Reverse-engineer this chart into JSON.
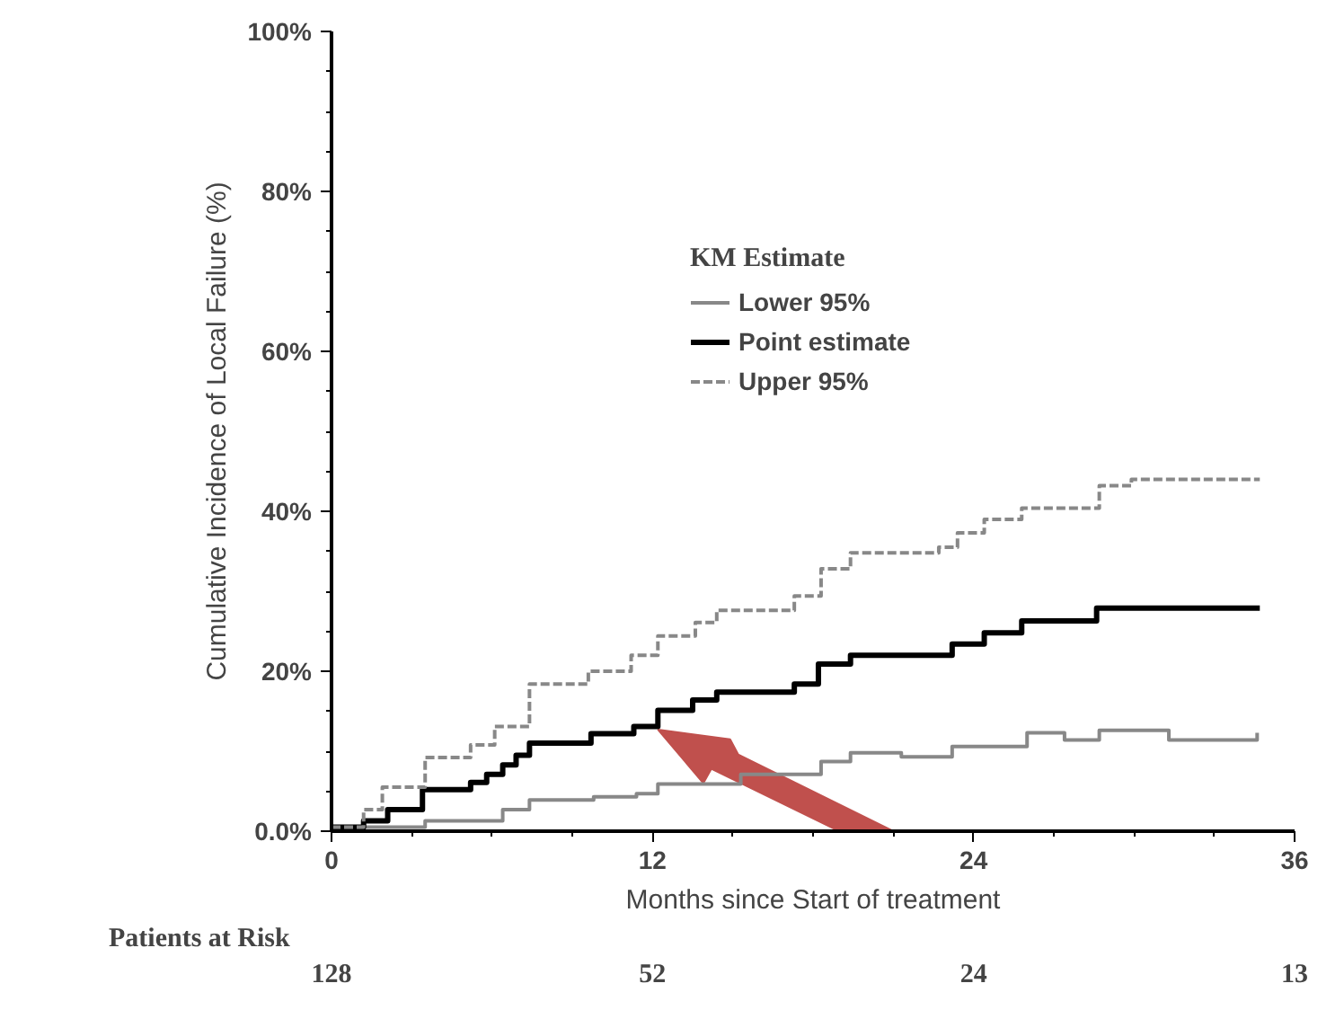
{
  "chart_data": {
    "type": "step",
    "xlabel": "Months since Start of treatment",
    "ylabel": "Cumulative Incidence of Local Failure (%)",
    "legend_title": "KM Estimate",
    "legend": "top",
    "grid": false,
    "xlim": [
      0,
      36
    ],
    "xticks": [
      0,
      12,
      24,
      36
    ],
    "ylim": [
      0,
      100
    ],
    "yticks": [
      {
        "value": 0,
        "label": "0.0%"
      },
      {
        "value": 20,
        "label": "20%"
      },
      {
        "value": 40,
        "label": "40%"
      },
      {
        "value": 60,
        "label": "60%"
      },
      {
        "value": 80,
        "label": "80%"
      },
      {
        "value": 100,
        "label": "100%"
      }
    ],
    "series": [
      {
        "name": "Lower 95%",
        "color": "#888888",
        "line_style": "solid",
        "x": [
          0,
          3.5,
          6.4,
          7.4,
          9.8,
          11.4,
          12.2,
          15.3,
          18.3,
          19.4,
          21.3,
          23.2,
          26.0,
          27.4,
          28.7,
          31.3,
          34.6
        ],
        "values": [
          0.5,
          1.3,
          2.7,
          3.9,
          4.3,
          4.7,
          5.9,
          7.1,
          8.7,
          9.8,
          9.3,
          10.6,
          12.3,
          11.4,
          12.6,
          11.4,
          12.3
        ]
      },
      {
        "name": "Point estimate",
        "color": "#000000",
        "line_style": "solid",
        "x": [
          0,
          1.2,
          2.1,
          3.4,
          5.2,
          5.8,
          6.4,
          6.9,
          7.4,
          9.7,
          11.3,
          12.2,
          13.5,
          14.4,
          17.3,
          18.2,
          19.4,
          23.2,
          24.4,
          25.8,
          28.6,
          34.7
        ],
        "values": [
          0.5,
          1.3,
          2.7,
          5.2,
          6.1,
          7.1,
          8.3,
          9.5,
          11.0,
          12.2,
          13.1,
          15.1,
          16.4,
          17.4,
          18.4,
          20.9,
          22.0,
          23.4,
          24.8,
          26.3,
          27.9,
          27.9
        ]
      },
      {
        "name": "Upper 95%",
        "color": "#888888",
        "line_style": "dashed",
        "x": [
          0,
          1.2,
          1.9,
          3.5,
          5.2,
          6.1,
          7.4,
          9.6,
          11.2,
          12.2,
          13.6,
          14.4,
          17.3,
          18.3,
          19.4,
          22.7,
          23.4,
          24.4,
          25.8,
          28.7,
          29.9,
          34.7
        ],
        "values": [
          0.5,
          2.7,
          5.5,
          9.2,
          10.8,
          13.1,
          18.4,
          20.0,
          22.0,
          24.4,
          26.1,
          27.6,
          29.4,
          32.8,
          34.8,
          35.5,
          37.3,
          39.0,
          40.4,
          43.2,
          44.0,
          44.0
        ]
      }
    ],
    "annotations": [
      "Patients at Risk",
      "128",
      "52",
      "24",
      "13"
    ]
  }
}
